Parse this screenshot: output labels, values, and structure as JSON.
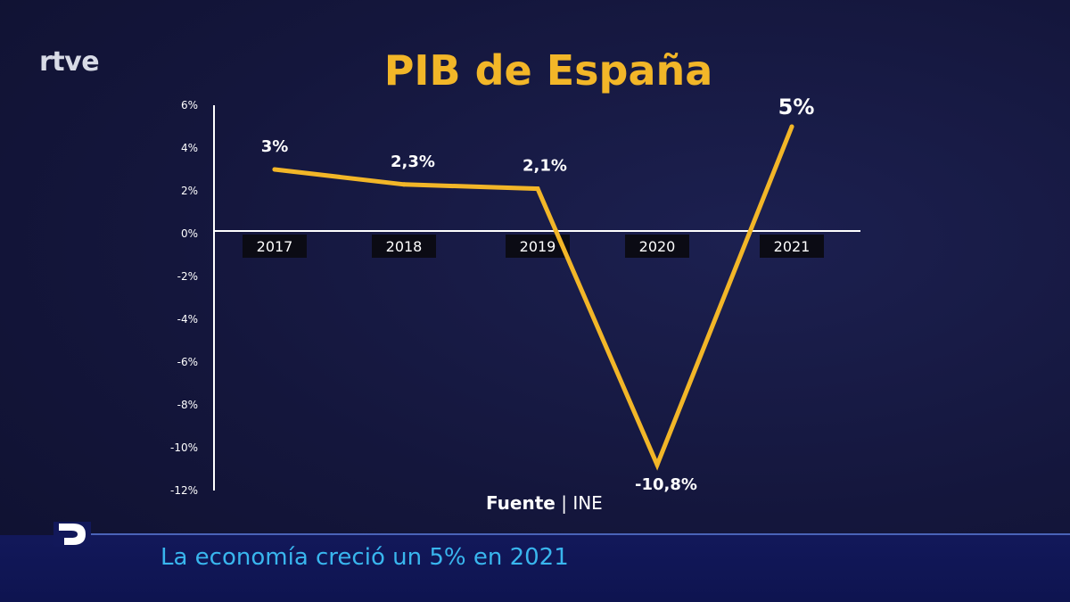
{
  "brand": {
    "logo": "rtve"
  },
  "source": {
    "label": "Fuente",
    "value": "INE"
  },
  "ticker": {
    "text": "La economía creció un 5% en 2021"
  },
  "colors": {
    "line": "#f2b628",
    "title": "#f2b628",
    "ticker_text": "#39b6ee",
    "axis": "#ffffff",
    "background": "#13153a"
  },
  "chart_data": {
    "type": "line",
    "title": "PIB de España",
    "x": [
      "2017",
      "2018",
      "2019",
      "2020",
      "2021"
    ],
    "series": [
      {
        "values": [
          3,
          2.3,
          2.1,
          -10.8,
          5
        ],
        "labels": [
          "3%",
          "2,3%",
          "2,1%",
          "-10,8%",
          "5%"
        ]
      }
    ],
    "ylim": [
      -12,
      6
    ],
    "yticks": [
      6,
      4,
      2,
      0,
      -2,
      -4,
      -6,
      -8,
      -10,
      -12
    ],
    "ytick_labels": [
      "6%",
      "4%",
      "2%",
      "0%",
      "-2%",
      "-4%",
      "-6%",
      "-8%",
      "-10%",
      "-12%"
    ],
    "grid": false
  }
}
